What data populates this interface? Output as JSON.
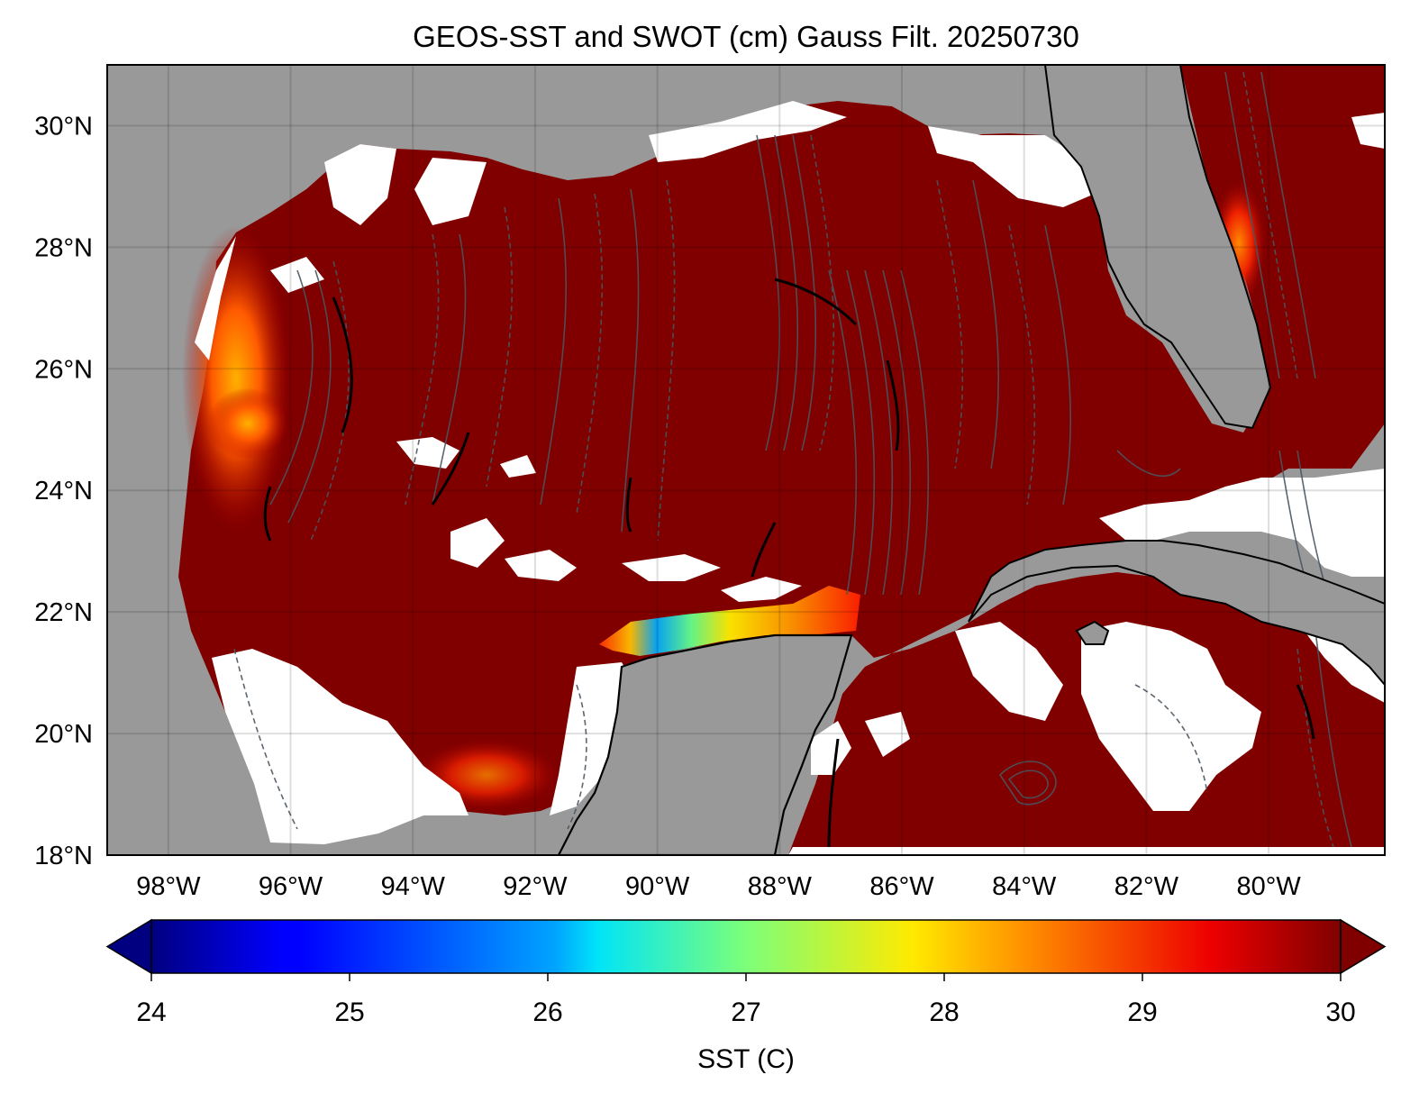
{
  "title": "GEOS-SST  and SWOT (cm) Gauss Filt. 20250730",
  "map": {
    "lon_range": [
      -99,
      -78.1
    ],
    "lat_range": [
      18,
      31
    ],
    "lon_ticks": [
      {
        "value": -98,
        "label": "98°W"
      },
      {
        "value": -96,
        "label": "96°W"
      },
      {
        "value": -94,
        "label": "94°W"
      },
      {
        "value": -92,
        "label": "92°W"
      },
      {
        "value": -90,
        "label": "90°W"
      },
      {
        "value": -88,
        "label": "88°W"
      },
      {
        "value": -86,
        "label": "86°W"
      },
      {
        "value": -84,
        "label": "84°W"
      },
      {
        "value": -82,
        "label": "82°W"
      },
      {
        "value": -80,
        "label": "80°W"
      }
    ],
    "lat_ticks": [
      {
        "value": 30,
        "label": "30°N"
      },
      {
        "value": 28,
        "label": "28°N"
      },
      {
        "value": 26,
        "label": "26°N"
      },
      {
        "value": 24,
        "label": "24°N"
      },
      {
        "value": 22,
        "label": "22°N"
      },
      {
        "value": 20,
        "label": "20°N"
      },
      {
        "value": 18,
        "label": "18°N"
      }
    ],
    "land_color": "#999999",
    "ocean_warm_color": "#800000",
    "missing_color": "#ffffff",
    "gridlines": true
  },
  "colorbar": {
    "label": "SST (C)",
    "min": 24,
    "max": 30,
    "ticks": [
      "24",
      "25",
      "26",
      "27",
      "28",
      "29",
      "30"
    ],
    "colormap": "jet",
    "extend": "both"
  }
}
